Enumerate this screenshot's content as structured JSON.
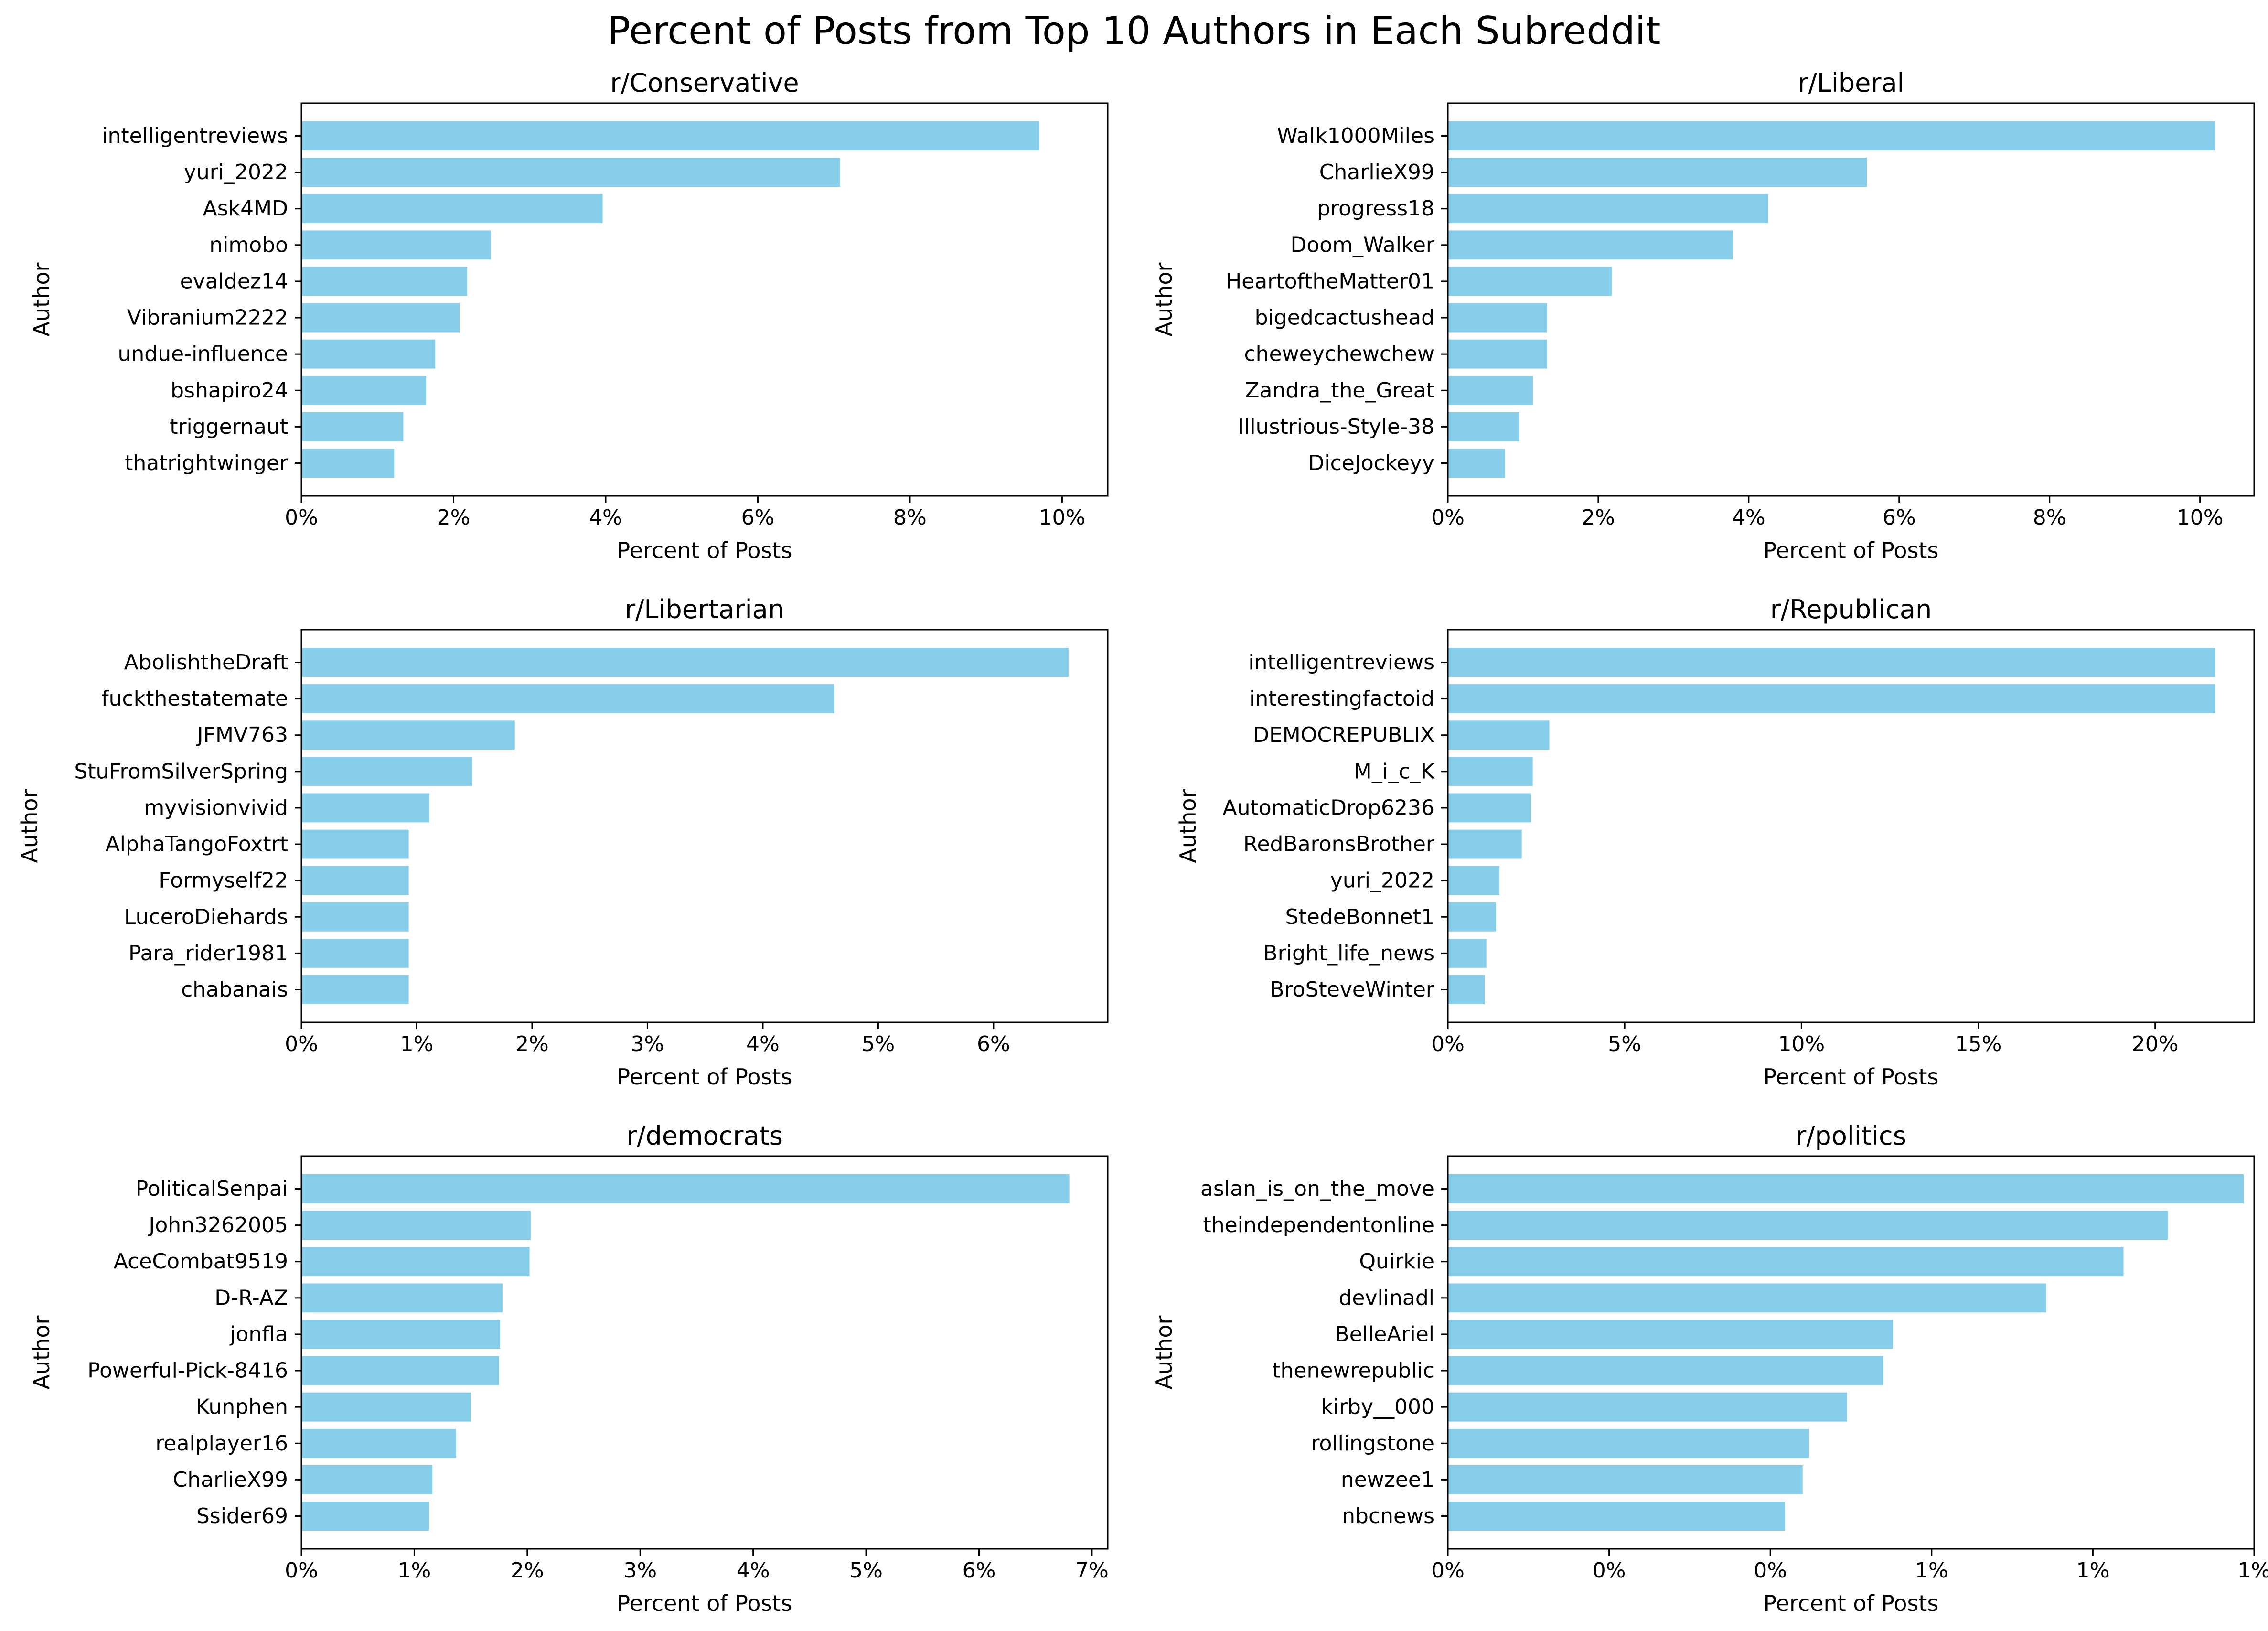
{
  "title": "Percent of Posts from Top 10 Authors in Each Subreddit",
  "colors": {
    "bar": "#87ceeb",
    "axis": "#000000"
  },
  "chart_data": [
    {
      "type": "bar",
      "orientation": "horizontal",
      "title": "r/Conservative",
      "xlabel": "Percent of Posts",
      "ylabel": "Author",
      "categories": [
        "intelligentreviews",
        "yuri_2022",
        "Ask4MD",
        "nimobo",
        "evaldez14",
        "Vibranium2222",
        "undue-influence",
        "bshapiro24",
        "triggernaut",
        "thatrightwinger"
      ],
      "values": [
        9.7,
        7.08,
        3.96,
        2.49,
        2.18,
        2.08,
        1.76,
        1.64,
        1.34,
        1.22
      ],
      "xlim": [
        0,
        10.6
      ],
      "ticks": [
        0,
        2,
        4,
        6,
        8,
        10
      ],
      "tick_labels": [
        "0%",
        "2%",
        "4%",
        "6%",
        "8%",
        "10%"
      ]
    },
    {
      "type": "bar",
      "orientation": "horizontal",
      "title": "r/Liberal",
      "xlabel": "Percent of Posts",
      "ylabel": "Author",
      "categories": [
        "Walk1000Miles",
        "CharlieX99",
        "progress18",
        "Doom_Walker",
        "HeartoftheMatter01",
        "bigedcactushead",
        "cheweychewchew",
        "Zandra_the_Great",
        "Illustrious-Style-38",
        "DiceJockeyy"
      ],
      "values": [
        10.2,
        5.57,
        4.26,
        3.79,
        2.18,
        1.32,
        1.32,
        1.13,
        0.95,
        0.76
      ],
      "xlim": [
        0,
        10.72
      ],
      "ticks": [
        0,
        2,
        4,
        6,
        8,
        10
      ],
      "tick_labels": [
        "0%",
        "2%",
        "4%",
        "6%",
        "8%",
        "10%"
      ]
    },
    {
      "type": "bar",
      "orientation": "horizontal",
      "title": "r/Libertarian",
      "xlabel": "Percent of Posts",
      "ylabel": "Author",
      "categories": [
        "AbolishtheDraft",
        "fuckthestatemate",
        "JFMV763",
        "StuFromSilverSpring",
        "myvisionvivid",
        "AlphaTangoFoxtrt",
        "Formyself22",
        "LuceroDiehards",
        "Para_rider1981",
        "chabanais"
      ],
      "values": [
        6.65,
        4.62,
        1.85,
        1.48,
        1.11,
        0.93,
        0.93,
        0.93,
        0.93,
        0.93
      ],
      "xlim": [
        0,
        6.99
      ],
      "ticks": [
        0,
        1,
        2,
        3,
        4,
        5,
        6
      ],
      "tick_labels": [
        "0%",
        "1%",
        "2%",
        "3%",
        "4%",
        "5%",
        "6%"
      ]
    },
    {
      "type": "bar",
      "orientation": "horizontal",
      "title": "r/Republican",
      "xlabel": "Percent of Posts",
      "ylabel": "Author",
      "categories": [
        "intelligentreviews",
        "interestingfactoid",
        "DEMOCREPUBLIX",
        "M_i_c_K",
        "AutomaticDrop6236",
        "RedBaronsBrother",
        "yuri_2022",
        "StedeBonnet1",
        "Bright_life_news",
        "BroSteveWinter"
      ],
      "values": [
        21.7,
        21.7,
        2.87,
        2.4,
        2.35,
        2.09,
        1.46,
        1.36,
        1.09,
        1.04
      ],
      "xlim": [
        0,
        22.8
      ],
      "ticks": [
        0,
        5,
        10,
        15,
        20
      ],
      "tick_labels": [
        "0%",
        "5%",
        "10%",
        "15%",
        "20%"
      ]
    },
    {
      "type": "bar",
      "orientation": "horizontal",
      "title": "r/democrats",
      "xlabel": "Percent of Posts",
      "ylabel": "Author",
      "categories": [
        "PoliticalSenpai",
        "John3262005",
        "AceCombat9519",
        "D-R-AZ",
        "jonfla",
        "Powerful-Pick-8416",
        "Kunphen",
        "realplayer16",
        "CharlieX99",
        "Ssider69"
      ],
      "values": [
        6.8,
        2.03,
        2.02,
        1.78,
        1.76,
        1.75,
        1.5,
        1.37,
        1.16,
        1.13
      ],
      "xlim": [
        0,
        7.14
      ],
      "ticks": [
        0,
        1,
        2,
        3,
        4,
        5,
        6,
        7
      ],
      "tick_labels": [
        "0%",
        "1%",
        "2%",
        "3%",
        "4%",
        "5%",
        "6%",
        "7%"
      ]
    },
    {
      "type": "bar",
      "orientation": "horizontal",
      "title": "r/politics",
      "xlabel": "Percent of Posts",
      "ylabel": "Author",
      "categories": [
        "aslan_is_on_the_move",
        "theindependentonline",
        "Quirkie",
        "devlinadl",
        "BelleAriel",
        "thenewrepublic",
        "kirby__000",
        "rollingstone",
        "newzee1",
        "nbcnews"
      ],
      "values": [
        0.987,
        0.893,
        0.838,
        0.742,
        0.552,
        0.54,
        0.495,
        0.448,
        0.44,
        0.418
      ],
      "xlim": [
        0,
        1.0
      ],
      "ticks": [
        0,
        0.2,
        0.4,
        0.6,
        0.8,
        1.0
      ],
      "tick_labels": [
        "0%",
        "0%",
        "0%",
        "1%",
        "1%",
        "1%"
      ]
    }
  ]
}
